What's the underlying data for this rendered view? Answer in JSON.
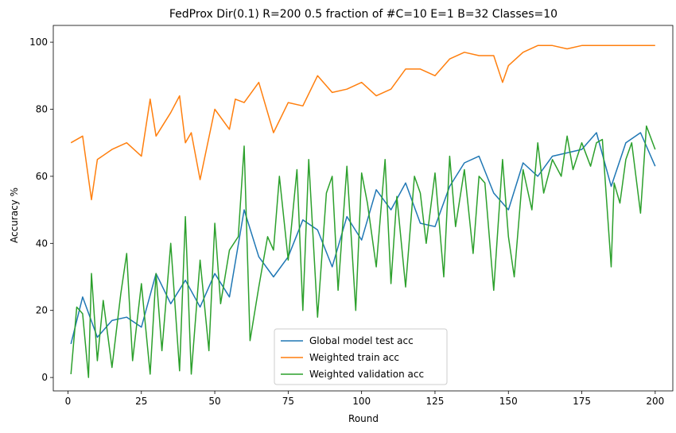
{
  "chart_data": {
    "type": "line",
    "title": "FedProx Dir(0.1) R=200 0.5 fraction of #C=10 E=1 B=32  Classes=10",
    "xlabel": "Round",
    "ylabel": "Accuracy %",
    "xlim": [
      -5,
      206
    ],
    "ylim": [
      -4,
      105
    ],
    "xticks": [
      0,
      25,
      50,
      75,
      100,
      125,
      150,
      175,
      200
    ],
    "yticks": [
      0,
      20,
      40,
      60,
      80,
      100
    ],
    "grid": false,
    "legend_position": "bottom-center",
    "colors": {
      "Global model test acc": "#1f77b4",
      "Weighted train acc": "#ff7f0e",
      "Weighted validation acc": "#2ca02c"
    },
    "series": [
      {
        "name": "Global model test acc",
        "x": [
          1,
          5,
          10,
          15,
          20,
          25,
          30,
          35,
          40,
          45,
          50,
          55,
          60,
          65,
          70,
          75,
          80,
          85,
          90,
          95,
          100,
          105,
          110,
          115,
          120,
          125,
          130,
          135,
          140,
          145,
          150,
          155,
          160,
          165,
          170,
          175,
          180,
          185,
          190,
          195,
          200
        ],
        "values": [
          10,
          24,
          12,
          17,
          18,
          15,
          31,
          22,
          29,
          21,
          31,
          24,
          50,
          36,
          30,
          36,
          47,
          44,
          33,
          48,
          41,
          56,
          50,
          58,
          46,
          45,
          57,
          64,
          66,
          55,
          50,
          64,
          60,
          66,
          67,
          68,
          73,
          57,
          70,
          73,
          63
        ]
      },
      {
        "name": "Weighted train acc",
        "x": [
          1,
          5,
          8,
          10,
          15,
          20,
          25,
          28,
          30,
          35,
          38,
          40,
          42,
          45,
          50,
          55,
          57,
          60,
          65,
          70,
          75,
          80,
          85,
          90,
          95,
          100,
          105,
          110,
          115,
          120,
          125,
          130,
          135,
          140,
          145,
          148,
          150,
          155,
          160,
          165,
          170,
          175,
          180,
          185,
          190,
          195,
          200
        ],
        "values": [
          70,
          72,
          53,
          65,
          68,
          70,
          66,
          83,
          72,
          79,
          84,
          70,
          73,
          59,
          80,
          74,
          83,
          82,
          88,
          73,
          82,
          81,
          90,
          85,
          86,
          88,
          84,
          86,
          92,
          92,
          90,
          95,
          97,
          96,
          96,
          88,
          93,
          97,
          99,
          99,
          98,
          99,
          99,
          99,
          99,
          99,
          99
        ]
      },
      {
        "name": "Weighted validation acc",
        "x": [
          1,
          3,
          5,
          7,
          8,
          10,
          12,
          15,
          18,
          20,
          22,
          25,
          28,
          30,
          32,
          35,
          38,
          40,
          42,
          45,
          48,
          50,
          52,
          55,
          58,
          60,
          62,
          65,
          68,
          70,
          72,
          75,
          78,
          80,
          82,
          85,
          88,
          90,
          92,
          95,
          98,
          100,
          102,
          105,
          108,
          110,
          112,
          115,
          118,
          120,
          122,
          125,
          128,
          130,
          132,
          135,
          138,
          140,
          142,
          145,
          148,
          150,
          152,
          155,
          158,
          160,
          162,
          165,
          168,
          170,
          172,
          175,
          178,
          180,
          182,
          185,
          186,
          188,
          190,
          192,
          195,
          197,
          200
        ],
        "values": [
          1,
          21,
          19,
          0,
          31,
          5,
          23,
          3,
          25,
          37,
          5,
          28,
          1,
          31,
          8,
          40,
          2,
          48,
          1,
          35,
          8,
          46,
          22,
          38,
          42,
          69,
          11,
          27,
          42,
          38,
          60,
          35,
          62,
          20,
          65,
          18,
          55,
          60,
          26,
          63,
          20,
          61,
          52,
          33,
          65,
          28,
          54,
          27,
          60,
          55,
          40,
          61,
          30,
          66,
          45,
          62,
          37,
          60,
          58,
          26,
          65,
          42,
          30,
          62,
          50,
          70,
          55,
          65,
          60,
          72,
          62,
          70,
          63,
          70,
          71,
          33,
          58,
          52,
          65,
          70,
          49,
          75,
          68
        ]
      }
    ]
  }
}
